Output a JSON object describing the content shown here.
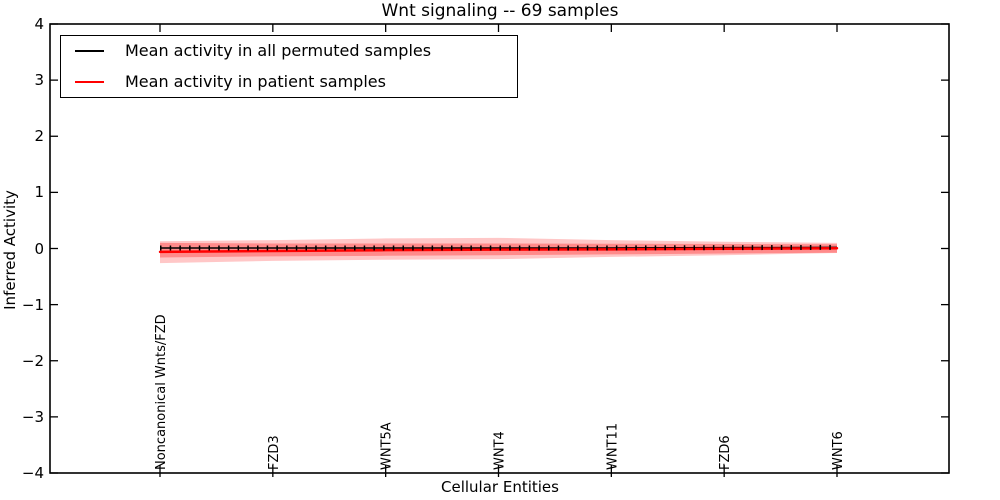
{
  "title": "Wnt signaling -- 69 samples",
  "legend": {
    "items": [
      {
        "label": "Mean activity in all permuted samples",
        "color": "#000000",
        "swatch": "black-line"
      },
      {
        "label": "Mean activity in patient samples",
        "color": "#ff0000",
        "swatch": "red-line"
      }
    ]
  },
  "axes": {
    "xlabel": "Cellular Entities",
    "ylabel": "Inferred Activity",
    "ytick_labels": [
      "4",
      "3",
      "2",
      "1",
      "0",
      "−1",
      "−2",
      "−3",
      "−4"
    ]
  },
  "colors": {
    "frame": "#000000",
    "permuted_line": "#000000",
    "patient_line": "#ff0000",
    "band_fill": "#ff0000"
  },
  "chart_data": {
    "type": "line",
    "title": "Wnt signaling -- 69 samples",
    "samples": 69,
    "xlabel": "Cellular Entities",
    "ylabel": "Inferred Activity",
    "ylim": [
      -4,
      4
    ],
    "yticks": [
      4,
      3,
      2,
      1,
      0,
      -1,
      -2,
      -3,
      -4
    ],
    "grid": false,
    "legend_position": "upper left",
    "categories": [
      "Noncanonical Wnts/FZD",
      "FZD3",
      "WNT5A",
      "WNT4",
      "WNT11",
      "FZD6",
      "WNT6"
    ],
    "series": [
      {
        "name": "Mean activity in all permuted samples",
        "color": "#000000",
        "style": "solid-with-dense-tick-markers",
        "values": [
          0.01,
          0.01,
          0.01,
          0.01,
          0.01,
          0.015,
          0.02
        ]
      },
      {
        "name": "Mean activity in patient samples",
        "color": "#ff0000",
        "style": "solid",
        "values": [
          -0.06,
          -0.045,
          -0.03,
          -0.02,
          -0.015,
          -0.005,
          0.005
        ]
      }
    ],
    "bands": [
      {
        "name": "patient-activity-spread-outer",
        "color": "#ff0000",
        "opacity": 0.22,
        "upper": [
          0.13,
          0.15,
          0.18,
          0.19,
          0.15,
          0.12,
          0.1
        ],
        "lower": [
          -0.26,
          -0.22,
          -0.2,
          -0.19,
          -0.15,
          -0.12,
          -0.08
        ]
      },
      {
        "name": "patient-activity-spread-inner",
        "color": "#ff0000",
        "opacity": 0.3,
        "upper": [
          0.1,
          0.09,
          0.09,
          0.09,
          0.085,
          0.08,
          0.075
        ],
        "lower": [
          -0.16,
          -0.14,
          -0.13,
          -0.12,
          -0.105,
          -0.09,
          -0.075
        ]
      }
    ]
  }
}
